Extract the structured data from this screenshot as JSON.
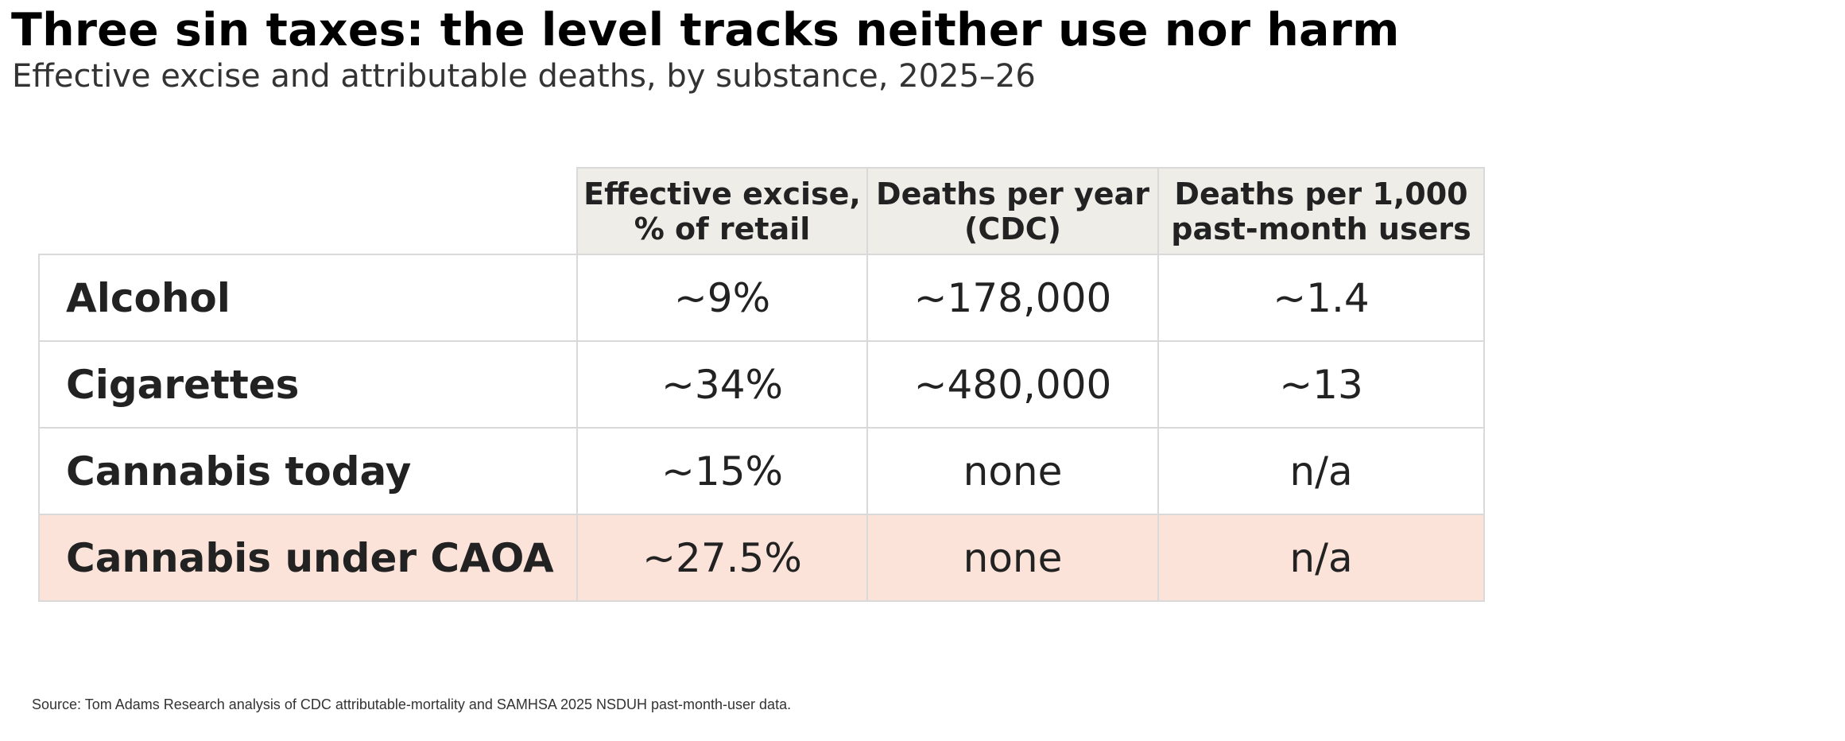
{
  "title": "Three sin taxes: the level tracks neither use nor harm",
  "subtitle": "Effective excise and attributable deaths, by substance, 2025–26",
  "source": "Source: Tom Adams Research analysis of CDC attributable-mortality and SAMHSA 2025 NSDUH past-month-user data.",
  "colors": {
    "header_bg": "#eeede8",
    "highlight_row_bg": "#fbe3d9",
    "grid": "#d9d9d9"
  },
  "chart_data": {
    "type": "table",
    "title": "Three sin taxes: the level tracks neither use nor harm",
    "subtitle": "Effective excise and attributable deaths, by substance, 2025–26",
    "columns": [
      "Effective excise,\n% of retail",
      "Deaths per year\n(CDC)",
      "Deaths per 1,000\npast-month users"
    ],
    "rows": [
      {
        "label": "Alcohol",
        "cells": [
          "~9%",
          "~178,000",
          "~1.4"
        ],
        "highlight": false
      },
      {
        "label": "Cigarettes",
        "cells": [
          "~34%",
          "~480,000",
          "~13"
        ],
        "highlight": false
      },
      {
        "label": "Cannabis today",
        "cells": [
          "~15%",
          "none",
          "n/a"
        ],
        "highlight": false
      },
      {
        "label": "Cannabis under CAOA",
        "cells": [
          "~27.5%",
          "none",
          "n/a"
        ],
        "highlight": true
      }
    ]
  }
}
